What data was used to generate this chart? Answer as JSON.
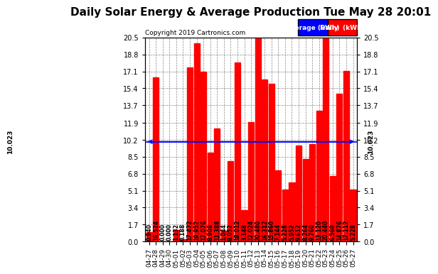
{
  "title": "Daily Solar Energy & Average Production Tue May 28 20:01",
  "copyright": "Copyright 2019 Cartronics.com",
  "categories": [
    "04-27",
    "04-28",
    "04-29",
    "04-30",
    "05-01",
    "05-02",
    "05-03",
    "05-04",
    "05-05",
    "05-06",
    "05-07",
    "05-08",
    "05-09",
    "05-10",
    "05-11",
    "05-12",
    "05-13",
    "05-14",
    "05-15",
    "05-16",
    "05-17",
    "05-18",
    "05-19",
    "05-20",
    "05-21",
    "05-22",
    "05-23",
    "05-24",
    "05-25",
    "05-26",
    "05-27"
  ],
  "values": [
    0.94,
    16.524,
    0.0,
    0.0,
    1.132,
    0.188,
    17.472,
    19.952,
    17.076,
    8.908,
    11.388,
    1.044,
    8.052,
    18.012,
    3.148,
    12.024,
    20.48,
    16.312,
    15.86,
    7.144,
    5.228,
    5.952,
    9.612,
    8.264,
    9.76,
    13.12,
    20.44,
    6.56,
    14.876,
    17.112,
    5.228
  ],
  "average": 10.023,
  "bar_color": "#ff0000",
  "average_line_color": "#0000ff",
  "background_color": "#ffffff",
  "plot_bg_color": "#ffffff",
  "grid_color": "#888888",
  "ylim": [
    0.0,
    20.5
  ],
  "yticks": [
    0.0,
    1.7,
    3.4,
    5.1,
    6.8,
    8.5,
    10.2,
    11.9,
    13.7,
    15.4,
    17.1,
    18.8,
    20.5
  ],
  "title_fontsize": 11,
  "bar_label_fontsize": 5.5,
  "avg_label": "10.023",
  "legend_avg_label": "Average (kWh)",
  "legend_daily_label": "Daily  (kWh)"
}
